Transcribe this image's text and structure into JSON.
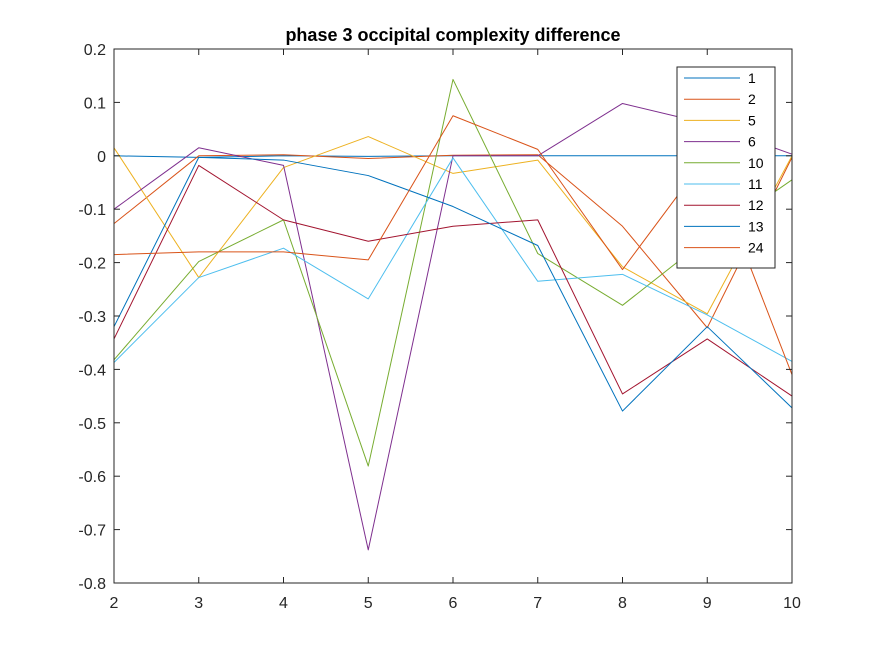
{
  "chart_data": {
    "type": "line",
    "title": "phase 3 occipital complexity difference",
    "xlabel": "",
    "ylabel": "",
    "xlim": [
      2,
      10
    ],
    "ylim": [
      -0.8,
      0.2
    ],
    "xticks": [
      2,
      3,
      4,
      5,
      6,
      7,
      8,
      9,
      10
    ],
    "yticks": [
      0.2,
      0.1,
      0,
      -0.1,
      -0.2,
      -0.3,
      -0.4,
      -0.5,
      -0.6,
      -0.7,
      -0.8
    ],
    "ytick_labels": [
      "0.2",
      "0.1",
      "0",
      "-0.1",
      "-0.2",
      "-0.3",
      "-0.4",
      "-0.5",
      "-0.6",
      "-0.7",
      "-0.8"
    ],
    "grid": false,
    "legend_position": "top-right",
    "x": [
      2,
      3,
      4,
      5,
      6,
      7,
      8,
      9,
      10
    ],
    "series": [
      {
        "name": "1",
        "color": "#0072BD",
        "values": [
          0.0,
          -0.003,
          0.0,
          -0.001,
          0.0,
          0.0,
          0.0,
          0.0,
          0.0
        ]
      },
      {
        "name": "2",
        "color": "#D95319",
        "values": [
          -0.127,
          0.0,
          0.002,
          -0.005,
          0.001,
          0.002,
          -0.132,
          -0.322,
          -0.003
        ]
      },
      {
        "name": "5",
        "color": "#EDB120",
        "values": [
          0.015,
          -0.228,
          -0.022,
          0.036,
          -0.033,
          -0.008,
          -0.208,
          -0.296,
          0.0
        ]
      },
      {
        "name": "6",
        "color": "#7E2F8E",
        "values": [
          -0.1,
          0.015,
          -0.018,
          -0.738,
          0.0,
          0.0,
          0.098,
          0.06,
          0.003
        ]
      },
      {
        "name": "10",
        "color": "#77AC30",
        "values": [
          -0.382,
          -0.198,
          -0.12,
          -0.581,
          0.143,
          -0.183,
          -0.28,
          -0.155,
          -0.045
        ]
      },
      {
        "name": "11",
        "color": "#4DBEEE",
        "values": [
          -0.387,
          -0.228,
          -0.173,
          -0.268,
          -0.004,
          -0.235,
          -0.222,
          -0.298,
          -0.385
        ]
      },
      {
        "name": "12",
        "color": "#A2142F",
        "values": [
          -0.343,
          -0.018,
          -0.12,
          -0.16,
          -0.132,
          -0.12,
          -0.446,
          -0.343,
          -0.45
        ]
      },
      {
        "name": "13",
        "color": "#0072BD",
        "values": [
          -0.32,
          -0.003,
          -0.008,
          -0.037,
          -0.095,
          -0.168,
          -0.478,
          -0.32,
          -0.472
        ]
      },
      {
        "name": "24",
        "color": "#D95319",
        "values": [
          -0.185,
          -0.18,
          -0.18,
          -0.195,
          0.075,
          0.012,
          -0.213,
          0.0,
          -0.41
        ]
      }
    ]
  }
}
